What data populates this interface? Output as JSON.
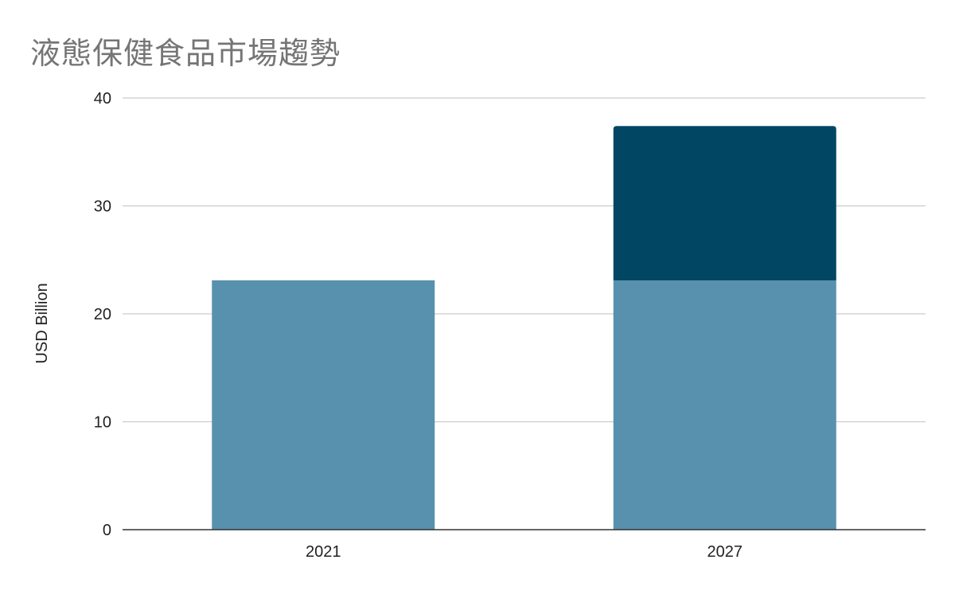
{
  "chart_data": {
    "type": "bar",
    "stacked": true,
    "title": "液態保健食品市場趨勢",
    "xlabel": "",
    "ylabel": "USD Billion",
    "categories": [
      "2021",
      "2027"
    ],
    "series": [
      {
        "values": [
          23.1,
          23.1
        ],
        "color": "#5891ae"
      },
      {
        "values": [
          0,
          14.3
        ],
        "color": "#014663"
      }
    ],
    "ylim": [
      0,
      40
    ],
    "yticks": [
      "0",
      "10",
      "20",
      "30",
      "40"
    ],
    "grid": true,
    "legend": "none"
  }
}
